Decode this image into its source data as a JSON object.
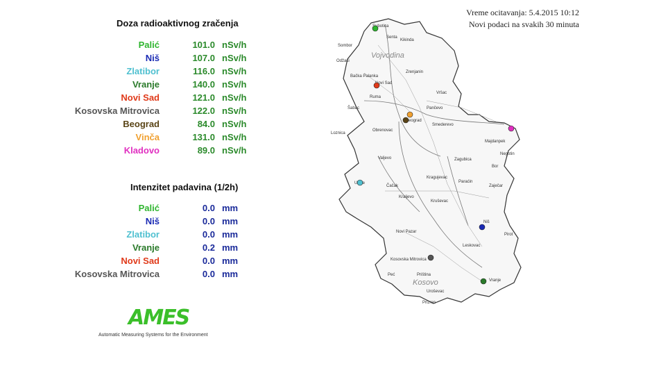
{
  "dose": {
    "title": "Doza radioaktivnog zračenja",
    "unit": "nSv/h",
    "stations": [
      {
        "name": "Palić",
        "value": "101.0",
        "color": "#2fb52f"
      },
      {
        "name": "Niš",
        "value": "107.0",
        "color": "#1a2ab4"
      },
      {
        "name": "Zlatibor",
        "value": "116.0",
        "color": "#4fc0d0"
      },
      {
        "name": "Vranje",
        "value": "140.0",
        "color": "#2a7a2a"
      },
      {
        "name": "Novi Sad",
        "value": "121.0",
        "color": "#e03a1a"
      },
      {
        "name": "Kosovska Mitrovica",
        "value": "122.0",
        "color": "#555555"
      },
      {
        "name": "Beograd",
        "value": "84.0",
        "color": "#5a4416"
      },
      {
        "name": "Vinča",
        "value": "131.0",
        "color": "#f0a030"
      },
      {
        "name": "Kladovo",
        "value": "89.0",
        "color": "#e030c0"
      }
    ]
  },
  "rain": {
    "title": "Intenzitet padavina (1/2h)",
    "unit": "mm",
    "stations": [
      {
        "name": "Palić",
        "value": "0.0",
        "color": "#2fb52f"
      },
      {
        "name": "Niš",
        "value": "0.0",
        "color": "#1a2ab4"
      },
      {
        "name": "Zlatibor",
        "value": "0.0",
        "color": "#4fc0d0"
      },
      {
        "name": "Vranje",
        "value": "0.2",
        "color": "#2a7a2a"
      },
      {
        "name": "Novi Sad",
        "value": "0.0",
        "color": "#e03a1a"
      },
      {
        "name": "Kosovska Mitrovica",
        "value": "0.0",
        "color": "#555555"
      }
    ]
  },
  "logo": {
    "mark": "AMES",
    "caption": "Automatic Measuring Systems for the Environment"
  },
  "info": {
    "read_time": "Vreme ocitavanja: 5.4.2015 10:12",
    "update_note": "Novi podaci na svakih 30 minuta"
  },
  "map": {
    "regions": [
      "Vojvodina",
      "Kosovo"
    ],
    "cities": [
      "Subotica",
      "Kikinda",
      "Sombor",
      "Senta",
      "Odžaci",
      "Zrenjanin",
      "Bačka Palanka",
      "Novi Sad",
      "Vršac",
      "Ruma",
      "Pančevo",
      "Šabac",
      "Beograd",
      "Smederevo",
      "Loznica",
      "Obrenovac",
      "Majdanpek",
      "Negotin",
      "Valjevo",
      "Zaječar",
      "Bor",
      "Užice",
      "Čačak",
      "Kragujevac",
      "Paraćin",
      "Zagubica",
      "Kraljevo",
      "Kruševac",
      "Niš",
      "Novi Pazar",
      "Pirot",
      "Leskovac",
      "Kosovska Mitrovica",
      "Peć",
      "Priština",
      "Vranje",
      "Uroševac",
      "Prizren"
    ],
    "markers": [
      {
        "station": "Palić",
        "color": "#2fb52f"
      },
      {
        "station": "Novi Sad",
        "color": "#e03a1a"
      },
      {
        "station": "Vinča",
        "color": "#f0a030"
      },
      {
        "station": "Beograd",
        "color": "#5a4416"
      },
      {
        "station": "Kladovo",
        "color": "#e030c0"
      },
      {
        "station": "Zlatibor",
        "color": "#4fc0d0"
      },
      {
        "station": "Niš",
        "color": "#1a2ab4"
      },
      {
        "station": "Kosovska Mitrovica",
        "color": "#555555"
      },
      {
        "station": "Vranje",
        "color": "#2a7a2a"
      }
    ]
  }
}
